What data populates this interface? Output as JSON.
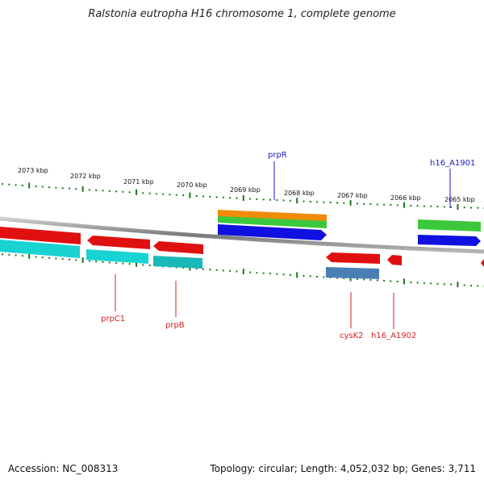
{
  "title": "Ralstonia eutropha H16 chromosome 1, complete genome",
  "footer": {
    "accession": "Accession: NC_008313",
    "stats": "Topology: circular; Length: 4,052,032 bp; Genes: 3,711"
  },
  "scale": {
    "unit": "kbp",
    "ticks": [
      {
        "label": "2073 kbp",
        "kbp": 2073
      },
      {
        "label": "2072 kbp",
        "kbp": 2072
      },
      {
        "label": "2071 kbp",
        "kbp": 2071
      },
      {
        "label": "2070 kbp",
        "kbp": 2070
      },
      {
        "label": "2069 kbp",
        "kbp": 2069
      },
      {
        "label": "2068 kbp",
        "kbp": 2068
      },
      {
        "label": "2067 kbp",
        "kbp": 2067
      },
      {
        "label": "2066 kbp",
        "kbp": 2066
      },
      {
        "label": "2065 kbp",
        "kbp": 2065
      }
    ]
  },
  "gene_labels": [
    {
      "name": "prpR",
      "color": "#1a1acc"
    },
    {
      "name": "h16_A1901",
      "color": "#1a1acc"
    },
    {
      "name": "prpC1",
      "color": "#d42020"
    },
    {
      "name": "prpB",
      "color": "#d42020"
    },
    {
      "name": "cysK2",
      "color": "#d42020"
    },
    {
      "name": "h16_A1902",
      "color": "#d42020"
    }
  ],
  "colors": {
    "backbone": "#8a8a8a",
    "tick": "#1a7a1a",
    "gene_red": "#e01010",
    "gene_cyan": "#19d3d3",
    "gene_teal": "#1ab8b8",
    "gene_orange": "#f08c0a",
    "gene_green": "#3cc83c",
    "gene_blue": "#1010e0",
    "gene_steel": "#4a7fb5"
  }
}
